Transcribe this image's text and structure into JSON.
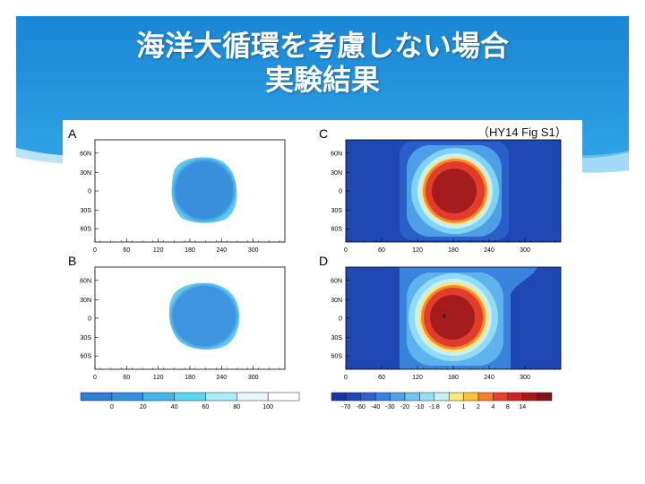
{
  "slide": {
    "title_line1": "海洋大循環を考慮しない場合",
    "title_line2": "実験結果",
    "caption": "（HY14 Fig S1）"
  },
  "colors": {
    "banner": "#1d8fd8",
    "banner_light": "#5fb9ef"
  },
  "panels": [
    {
      "label": "A"
    },
    {
      "label": "B"
    },
    {
      "label": "C"
    },
    {
      "label": "D"
    }
  ],
  "axes": {
    "y_ticks": [
      "60N",
      "30N",
      "0",
      "30S",
      "60S"
    ],
    "x_ticks": [
      "0",
      "60",
      "120",
      "180",
      "240",
      "300"
    ]
  },
  "colorbar_left": {
    "colors": [
      "#2f7ed4",
      "#3591dd",
      "#45b4ea",
      "#5cd6f0",
      "#a7ecf7",
      "#e8f9fb",
      "#ffffff"
    ],
    "labels": [
      "0",
      "20",
      "40",
      "60",
      "80",
      "100"
    ]
  },
  "colorbar_right": {
    "colors": [
      "#1535a6",
      "#1f49b8",
      "#2d63cb",
      "#3a83dc",
      "#4fa3ea",
      "#6cc5f2",
      "#98def7",
      "#c9f0f4",
      "#ffe978",
      "#ffc23b",
      "#f6812a",
      "#e9402b",
      "#ce2423",
      "#a71a19",
      "#7c1616"
    ],
    "labels": [
      "-70",
      "-60",
      "-40",
      "-30",
      "-20",
      "-10",
      "-1.8",
      "0",
      "1",
      "2",
      "4",
      "8",
      "14"
    ]
  }
}
